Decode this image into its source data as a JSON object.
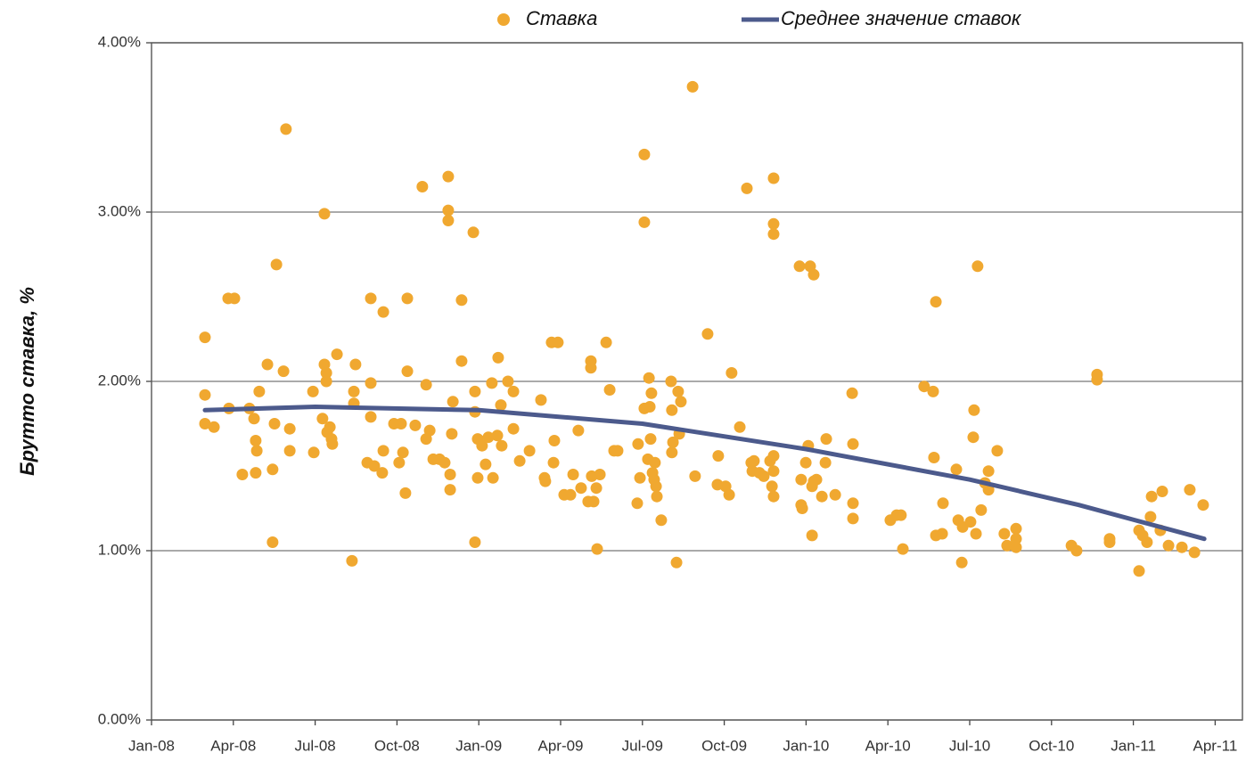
{
  "chart_data": {
    "type": "scatter",
    "ylabel": "Брутто ставка, %",
    "xlim": [
      0,
      40
    ],
    "xticks": [
      {
        "value": 0,
        "label": "Jan-08"
      },
      {
        "value": 3,
        "label": "Apr-08"
      },
      {
        "value": 6,
        "label": "Jul-08"
      },
      {
        "value": 9,
        "label": "Oct-08"
      },
      {
        "value": 12,
        "label": "Jan-09"
      },
      {
        "value": 15,
        "label": "Apr-09"
      },
      {
        "value": 18,
        "label": "Jul-09"
      },
      {
        "value": 21,
        "label": "Oct-09"
      },
      {
        "value": 24,
        "label": "Jan-10"
      },
      {
        "value": 27,
        "label": "Apr-10"
      },
      {
        "value": 30,
        "label": "Jul-10"
      },
      {
        "value": 33,
        "label": "Oct-10"
      },
      {
        "value": 36,
        "label": "Jan-11"
      },
      {
        "value": 39,
        "label": "Apr-11"
      }
    ],
    "ylim": [
      0,
      4
    ],
    "yticks": [
      {
        "value": 0,
        "label": "0.00%"
      },
      {
        "value": 1,
        "label": "1.00%"
      },
      {
        "value": 2,
        "label": "2.00%"
      },
      {
        "value": 3,
        "label": "3.00%"
      },
      {
        "value": 4,
        "label": "4.00%"
      }
    ],
    "grid": true,
    "legend": "top",
    "series": [
      {
        "name": "Ставка",
        "type": "scatter",
        "color": "#f0a830",
        "x": [
          1.96,
          1.96,
          1.96,
          2.29,
          2.81,
          3.04,
          2.84,
          3.33,
          3.59,
          3.76,
          3.82,
          3.86,
          3.82,
          3.95,
          4.25,
          4.58,
          4.51,
          4.44,
          4.44,
          4.84,
          4.93,
          5.07,
          5.07,
          5.92,
          5.95,
          6.27,
          6.34,
          6.34,
          6.41,
          6.41,
          6.44,
          6.54,
          6.6,
          6.63,
          6.8,
          7.35,
          7.42,
          7.42,
          7.48,
          7.91,
          8.04,
          8.04,
          8.04,
          8.17,
          8.46,
          8.5,
          8.5,
          8.89,
          9.08,
          9.15,
          9.22,
          9.31,
          9.38,
          9.38,
          9.67,
          9.93,
          10.07,
          10.07,
          10.2,
          10.33,
          10.56,
          10.75,
          10.88,
          10.88,
          10.88,
          10.95,
          10.95,
          11.01,
          11.05,
          11.37,
          11.37,
          11.8,
          11.86,
          11.86,
          11.86,
          11.96,
          11.96,
          12.12,
          12.25,
          12.35,
          12.48,
          12.52,
          12.68,
          12.71,
          12.81,
          12.84,
          13.07,
          13.27,
          13.27,
          13.5,
          13.86,
          14.28,
          14.41,
          14.44,
          14.67,
          14.77,
          14.74,
          14.9,
          15.13,
          15.36,
          15.46,
          15.65,
          15.75,
          16.01,
          16.11,
          16.11,
          16.14,
          16.21,
          16.31,
          16.34,
          16.44,
          16.67,
          16.8,
          16.96,
          17.09,
          17.81,
          17.84,
          17.91,
          18.07,
          18.07,
          18.07,
          18.2,
          18.24,
          18.27,
          18.3,
          18.33,
          18.37,
          18.43,
          18.46,
          18.5,
          18.53,
          18.69,
          19.05,
          19.08,
          19.08,
          19.12,
          19.25,
          19.31,
          19.35,
          19.41,
          19.84,
          19.93,
          20.39,
          20.75,
          20.78,
          21.05,
          21.18,
          21.27,
          21.57,
          21.83,
          21.99,
          22.03,
          22.09,
          22.29,
          22.45,
          22.68,
          22.75,
          22.81,
          22.81,
          22.81,
          22.81,
          22.81,
          22.81,
          23.76,
          23.82,
          23.82,
          23.86,
          23.99,
          24.08,
          24.15,
          24.22,
          24.22,
          24.28,
          24.28,
          24.38,
          24.58,
          24.71,
          24.74,
          25.07,
          25.69,
          25.72,
          25.72,
          25.72,
          27.09,
          27.32,
          27.48,
          27.55,
          28.33,
          28.66,
          28.76,
          28.69,
          28.76,
          28.99,
          29.02,
          29.51,
          29.58,
          29.71,
          29.74,
          30.03,
          30.16,
          30.13,
          30.23,
          30.29,
          30.42,
          30.56,
          30.69,
          30.69,
          31.01,
          31.27,
          31.37,
          31.7,
          31.7,
          31.7,
          33.73,
          33.92,
          34.67,
          34.67,
          35.13,
          35.13,
          36.21,
          36.21,
          36.34,
          36.5,
          36.63,
          36.67,
          36.99,
          37.06,
          37.29,
          37.78,
          38.07,
          38.24,
          38.56
        ],
        "values": [
          2.26,
          1.92,
          1.75,
          1.73,
          2.49,
          2.49,
          1.84,
          1.45,
          1.84,
          1.78,
          1.65,
          1.59,
          1.46,
          1.94,
          2.1,
          2.69,
          1.75,
          1.48,
          1.05,
          2.06,
          3.49,
          1.72,
          1.59,
          1.94,
          1.58,
          1.78,
          2.99,
          2.1,
          2.05,
          2.0,
          1.7,
          1.73,
          1.66,
          1.63,
          2.16,
          0.94,
          1.94,
          1.87,
          2.1,
          1.52,
          2.49,
          1.99,
          1.79,
          1.5,
          1.46,
          2.41,
          1.59,
          1.75,
          1.52,
          1.75,
          1.58,
          1.34,
          2.49,
          2.06,
          1.74,
          3.15,
          1.98,
          1.66,
          1.71,
          1.54,
          1.54,
          1.52,
          3.21,
          3.01,
          2.95,
          1.45,
          1.36,
          1.69,
          1.88,
          2.48,
          2.12,
          2.88,
          1.94,
          1.82,
          1.05,
          1.66,
          1.43,
          1.62,
          1.51,
          1.67,
          1.99,
          1.43,
          1.68,
          2.14,
          1.86,
          1.62,
          2.0,
          1.94,
          1.72,
          1.53,
          1.59,
          1.89,
          1.43,
          1.41,
          2.23,
          1.65,
          1.52,
          2.23,
          1.33,
          1.33,
          1.45,
          1.71,
          1.37,
          1.29,
          2.12,
          2.08,
          1.44,
          1.29,
          1.37,
          1.01,
          1.45,
          2.23,
          1.95,
          1.59,
          1.59,
          1.28,
          1.63,
          1.43,
          3.34,
          2.94,
          1.84,
          1.54,
          2.02,
          1.85,
          1.66,
          1.93,
          1.46,
          1.42,
          1.52,
          1.38,
          1.32,
          1.18,
          2.0,
          1.83,
          1.58,
          1.64,
          0.93,
          1.94,
          1.69,
          1.88,
          3.74,
          1.44,
          2.28,
          1.39,
          1.56,
          1.38,
          1.33,
          2.05,
          1.73,
          3.14,
          1.52,
          1.47,
          1.53,
          1.46,
          1.44,
          1.53,
          1.38,
          3.2,
          2.93,
          2.87,
          1.56,
          1.47,
          1.32,
          2.68,
          1.42,
          1.27,
          1.25,
          1.52,
          1.62,
          2.68,
          1.09,
          1.38,
          2.63,
          1.41,
          1.42,
          1.32,
          1.52,
          1.66,
          1.33,
          1.93,
          1.63,
          1.28,
          1.19,
          1.18,
          1.21,
          1.21,
          1.01,
          1.97,
          1.94,
          2.47,
          1.55,
          1.09,
          1.1,
          1.28,
          1.48,
          1.18,
          0.93,
          1.14,
          1.17,
          1.83,
          1.67,
          1.1,
          2.68,
          1.24,
          1.4,
          1.47,
          1.36,
          1.59,
          1.1,
          1.03,
          1.13,
          1.07,
          1.02,
          1.03,
          1.0,
          2.04,
          2.01,
          1.07,
          1.05,
          1.12,
          0.88,
          1.09,
          1.05,
          1.2,
          1.32,
          1.12,
          1.35,
          1.03,
          1.02,
          1.36,
          0.99,
          1.27
        ]
      },
      {
        "name": "Среднее значение ставок",
        "type": "line",
        "color": "#4c5a8c",
        "x": [
          1.96,
          6,
          12,
          18,
          24,
          30,
          34,
          38.6
        ],
        "values": [
          1.83,
          1.85,
          1.83,
          1.75,
          1.6,
          1.42,
          1.27,
          1.07
        ]
      }
    ]
  }
}
